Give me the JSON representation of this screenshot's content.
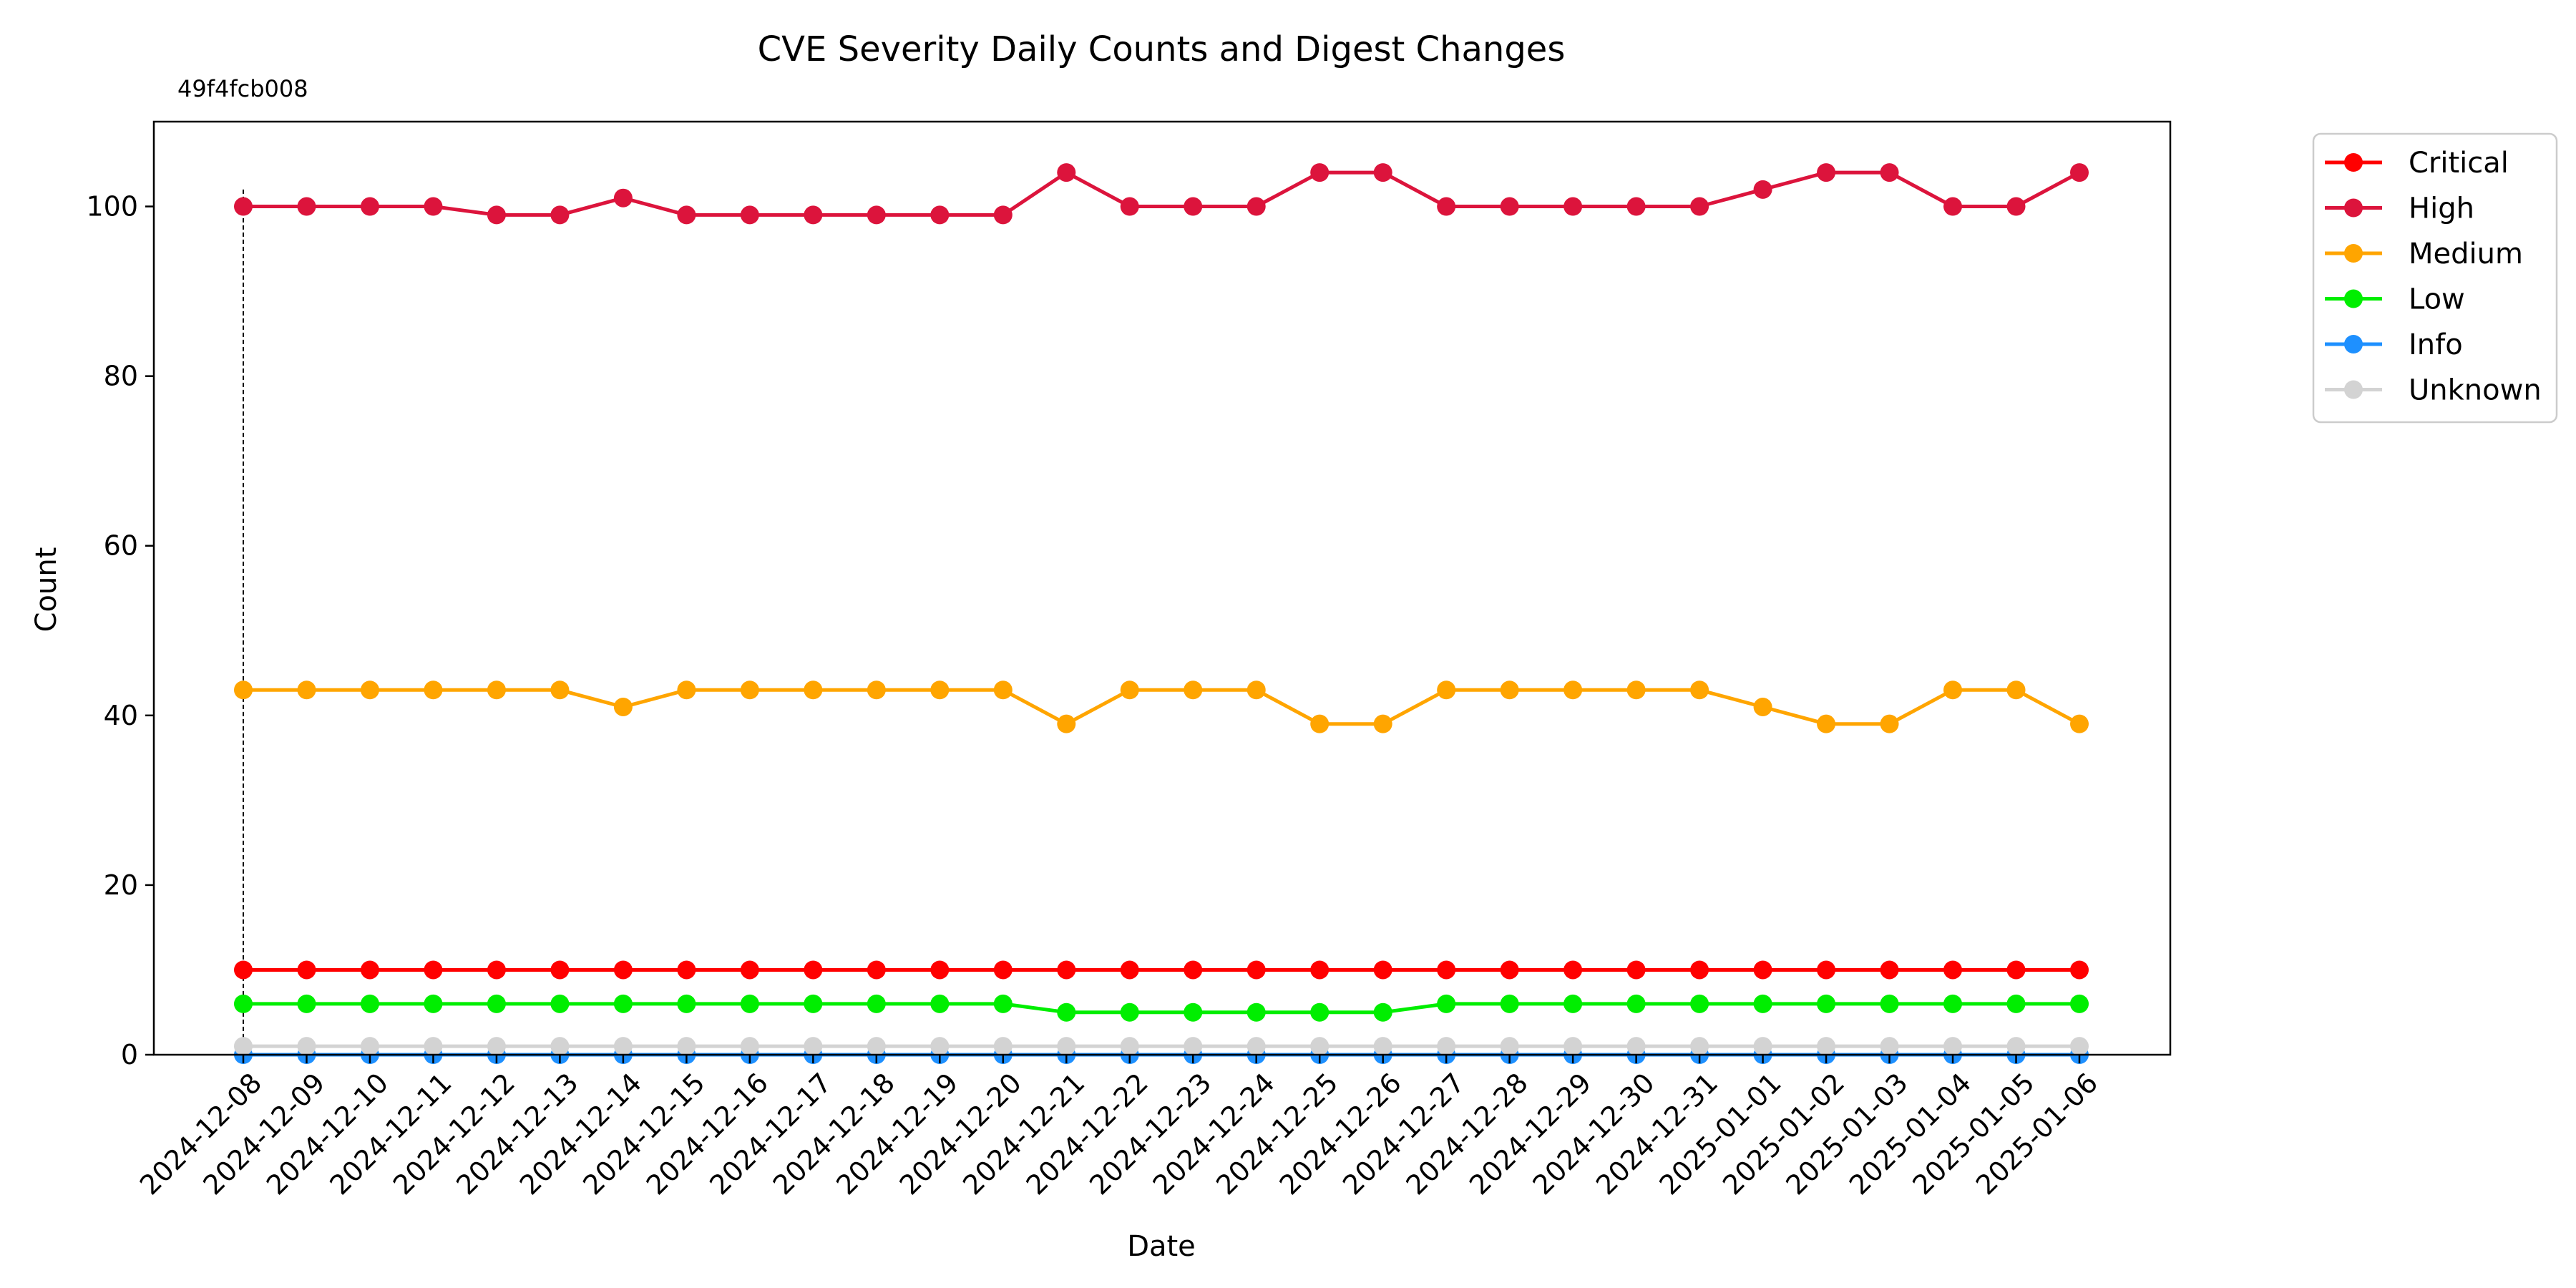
{
  "chart_data": {
    "type": "line",
    "title": "CVE Severity Daily Counts and Digest Changes",
    "xlabel": "Date",
    "ylabel": "Count",
    "ylim": [
      0,
      110
    ],
    "yticks": [
      0,
      20,
      40,
      60,
      80,
      100
    ],
    "grid": false,
    "legend_position": "outside-top-right",
    "x": [
      "2024-12-08",
      "2024-12-09",
      "2024-12-10",
      "2024-12-11",
      "2024-12-12",
      "2024-12-13",
      "2024-12-14",
      "2024-12-15",
      "2024-12-16",
      "2024-12-17",
      "2024-12-18",
      "2024-12-19",
      "2024-12-20",
      "2024-12-21",
      "2024-12-22",
      "2024-12-23",
      "2024-12-24",
      "2024-12-25",
      "2024-12-26",
      "2024-12-27",
      "2024-12-28",
      "2024-12-29",
      "2024-12-30",
      "2024-12-31",
      "2025-01-01",
      "2025-01-02",
      "2025-01-03",
      "2025-01-04",
      "2025-01-05",
      "2025-01-06"
    ],
    "series": [
      {
        "name": "Critical",
        "color": "#ff0000",
        "values": [
          10,
          10,
          10,
          10,
          10,
          10,
          10,
          10,
          10,
          10,
          10,
          10,
          10,
          10,
          10,
          10,
          10,
          10,
          10,
          10,
          10,
          10,
          10,
          10,
          10,
          10,
          10,
          10,
          10,
          10
        ]
      },
      {
        "name": "High",
        "color": "#dc143c",
        "values": [
          100,
          100,
          100,
          100,
          99,
          99,
          101,
          99,
          99,
          99,
          99,
          99,
          99,
          104,
          100,
          100,
          100,
          104,
          104,
          100,
          100,
          100,
          100,
          100,
          102,
          104,
          104,
          100,
          100,
          104
        ]
      },
      {
        "name": "Medium",
        "color": "#ffa500",
        "values": [
          43,
          43,
          43,
          43,
          43,
          43,
          41,
          43,
          43,
          43,
          43,
          43,
          43,
          39,
          43,
          43,
          43,
          39,
          39,
          43,
          43,
          43,
          43,
          43,
          41,
          39,
          39,
          43,
          43,
          39
        ]
      },
      {
        "name": "Low",
        "color": "#00ee00",
        "values": [
          6,
          6,
          6,
          6,
          6,
          6,
          6,
          6,
          6,
          6,
          6,
          6,
          6,
          5,
          5,
          5,
          5,
          5,
          5,
          6,
          6,
          6,
          6,
          6,
          6,
          6,
          6,
          6,
          6,
          6
        ]
      },
      {
        "name": "Info",
        "color": "#1e90ff",
        "values": [
          0,
          0,
          0,
          0,
          0,
          0,
          0,
          0,
          0,
          0,
          0,
          0,
          0,
          0,
          0,
          0,
          0,
          0,
          0,
          0,
          0,
          0,
          0,
          0,
          0,
          0,
          0,
          0,
          0,
          0
        ]
      },
      {
        "name": "Unknown",
        "color": "#d3d3d3",
        "values": [
          1,
          1,
          1,
          1,
          1,
          1,
          1,
          1,
          1,
          1,
          1,
          1,
          1,
          1,
          1,
          1,
          1,
          1,
          1,
          1,
          1,
          1,
          1,
          1,
          1,
          1,
          1,
          1,
          1,
          1
        ]
      }
    ],
    "annotations": [
      {
        "x": "2024-12-08",
        "text": "49f4fcb008",
        "style": "dashed-vertical-line"
      }
    ]
  }
}
